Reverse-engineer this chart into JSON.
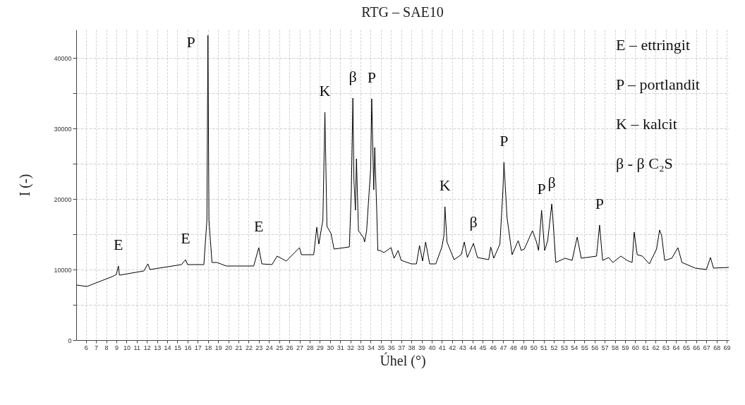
{
  "chart_data": {
    "type": "line",
    "title": "RTG – SAE10",
    "xlabel": "Úhel (°)",
    "ylabel": "I (-)",
    "x": [
      5.1,
      6.1,
      8.6,
      9.0,
      9.2,
      9.3,
      11.7,
      12.1,
      12.3,
      15.4,
      15.8,
      16.0,
      17.6,
      17.9,
      18.0,
      18.1,
      18.4,
      18.9,
      19.8,
      22.5,
      23.0,
      23.3,
      24.3,
      24.8,
      25.7,
      27.0,
      27.2,
      28.4,
      28.7,
      28.9,
      29.3,
      29.5,
      29.7,
      30.1,
      30.4,
      31.9,
      32.1,
      32.25,
      32.35,
      32.5,
      32.6,
      32.8,
      33.3,
      33.4,
      33.6,
      34.0,
      34.1,
      34.3,
      34.4,
      34.6,
      34.7,
      34.9,
      35.3,
      36.0,
      36.3,
      36.7,
      37.0,
      38.0,
      38.5,
      38.8,
      39.1,
      39.4,
      39.8,
      40.4,
      41.0,
      41.2,
      41.3,
      41.5,
      42.2,
      42.9,
      43.2,
      43.5,
      44.1,
      44.5,
      45.6,
      45.8,
      46.1,
      46.7,
      47.0,
      47.1,
      47.4,
      47.9,
      48.5,
      48.8,
      49.1,
      49.9,
      50.3,
      50.5,
      50.8,
      51.1,
      51.4,
      51.8,
      51.9,
      52.2,
      53.1,
      53.8,
      54.3,
      54.7,
      56.2,
      56.5,
      56.8,
      57.4,
      57.8,
      58.6,
      59.2,
      59.7,
      59.9,
      60.2,
      60.7,
      61.4,
      62.1,
      62.4,
      62.6,
      62.9,
      63.6,
      64.2,
      64.6,
      65.9,
      67.0,
      67.4,
      67.7,
      69.2
    ],
    "series": [
      {
        "color": "#000000",
        "values": [
          7800,
          7600,
          9000,
          9300,
          10500,
          9200,
          9800,
          10800,
          10000,
          10700,
          11400,
          10700,
          10700,
          17000,
          43200,
          17000,
          11000,
          11000,
          10500,
          10500,
          13100,
          10800,
          10700,
          11900,
          11200,
          13100,
          12100,
          12100,
          16000,
          13600,
          17000,
          32300,
          16100,
          15100,
          12900,
          13200,
          21300,
          34300,
          22800,
          18400,
          25700,
          15500,
          14500,
          13900,
          15500,
          24400,
          34200,
          21300,
          27300,
          18000,
          12700,
          12700,
          12400,
          13100,
          11600,
          12700,
          11300,
          10800,
          10800,
          13400,
          11200,
          13900,
          10800,
          10800,
          13200,
          14800,
          18900,
          13900,
          11400,
          12100,
          13900,
          11700,
          13700,
          11700,
          11400,
          13200,
          11600,
          13600,
          21300,
          25200,
          17400,
          12100,
          14100,
          12700,
          12900,
          15500,
          13900,
          12700,
          18400,
          12700,
          14100,
          19300,
          17400,
          11000,
          11600,
          11300,
          14600,
          11600,
          11900,
          16300,
          11300,
          11700,
          11000,
          11900,
          11300,
          11000,
          15300,
          12100,
          11900,
          10800,
          12900,
          15600,
          14800,
          11300,
          11600,
          13100,
          11000,
          10200,
          10000,
          11700,
          10200,
          10300
        ]
      }
    ],
    "xlim": [
      5.05,
      69.2
    ],
    "ylim": [
      0,
      44000
    ],
    "xticks": [
      6,
      7,
      8,
      9,
      10,
      11,
      12,
      13,
      14,
      15,
      16,
      17,
      18,
      19,
      20,
      21,
      22,
      23,
      24,
      25,
      26,
      27,
      28,
      29,
      30,
      31,
      32,
      33,
      34,
      35,
      36,
      37,
      38,
      39,
      40,
      41,
      42,
      43,
      44,
      45,
      46,
      47,
      48,
      49,
      50,
      51,
      52,
      53,
      54,
      55,
      56,
      57,
      58,
      59,
      60,
      61,
      62,
      63,
      64,
      65,
      66,
      67,
      68,
      69
    ],
    "yticks": [
      0,
      {
        "value": 5000,
        "label": null
      },
      10000,
      {
        "value": 15000,
        "label": null
      },
      20000,
      {
        "value": 25000,
        "label": null
      },
      30000,
      {
        "value": 35000,
        "label": null
      },
      40000
    ],
    "grid": true,
    "annotations": [
      {
        "text": "E",
        "x": 9.2,
        "y": 10500
      },
      {
        "text": "E",
        "x": 15.8,
        "y": 11400
      },
      {
        "text": "P",
        "x": 18.0,
        "y": 43200
      },
      {
        "text": "E",
        "x": 23.0,
        "y": 13100
      },
      {
        "text": "K",
        "x": 29.5,
        "y": 32300
      },
      {
        "text": "β",
        "x": 32.25,
        "y": 34300
      },
      {
        "text": "P",
        "x": 34.1,
        "y": 34200
      },
      {
        "text": "K",
        "x": 41.3,
        "y": 18900
      },
      {
        "text": "β",
        "x": 44.1,
        "y": 13700
      },
      {
        "text": "P",
        "x": 47.1,
        "y": 25200
      },
      {
        "text": "P",
        "x": 50.8,
        "y": 18400
      },
      {
        "text": "β",
        "x": 51.8,
        "y": 19300
      },
      {
        "text": "P",
        "x": 56.5,
        "y": 16300
      },
      "E – ettringit",
      "P – portlandit",
      "K – kalcit",
      "β - β C₂S"
    ]
  }
}
